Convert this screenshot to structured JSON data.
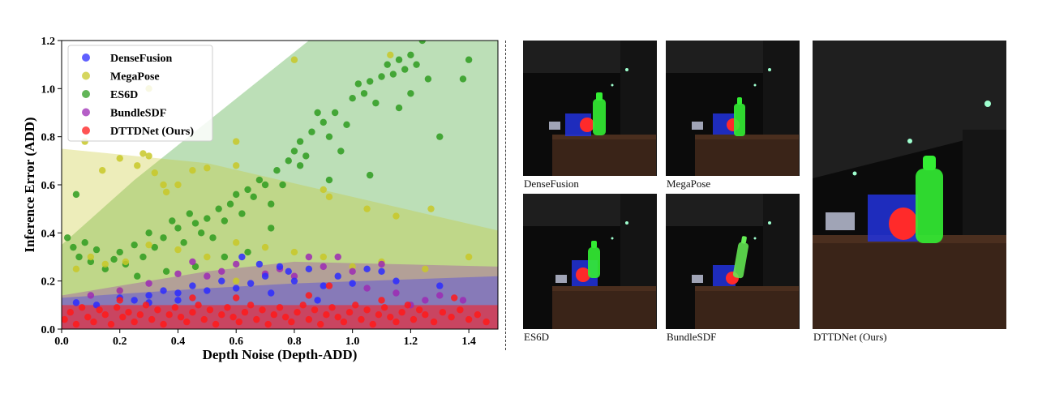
{
  "chart_data": {
    "type": "scatter",
    "xlabel": "Depth Noise (Depth-ADD)",
    "ylabel": "Inference Error (ADD)",
    "xlim": [
      0.0,
      1.5
    ],
    "ylim": [
      0.0,
      1.2
    ],
    "xticks": [
      "0.0",
      "0.2",
      "0.4",
      "0.6",
      "0.8",
      "1.0",
      "1.2",
      "1.4"
    ],
    "yticks": [
      "0.0",
      "0.2",
      "0.4",
      "0.6",
      "0.8",
      "1.0",
      "1.2"
    ],
    "legend_position": "top-left",
    "grid": false,
    "series": [
      {
        "name": "DenseFusion",
        "color": "#2b2bff",
        "band": [
          [
            0.0,
            0.13
          ],
          [
            0.5,
            0.17
          ],
          [
            0.8,
            0.19
          ],
          [
            1.5,
            0.22
          ]
        ],
        "points": [
          [
            0.05,
            0.11
          ],
          [
            0.12,
            0.1
          ],
          [
            0.2,
            0.13
          ],
          [
            0.25,
            0.12
          ],
          [
            0.3,
            0.14
          ],
          [
            0.35,
            0.16
          ],
          [
            0.4,
            0.15
          ],
          [
            0.45,
            0.18
          ],
          [
            0.5,
            0.16
          ],
          [
            0.55,
            0.2
          ],
          [
            0.6,
            0.17
          ],
          [
            0.65,
            0.19
          ],
          [
            0.7,
            0.22
          ],
          [
            0.72,
            0.15
          ],
          [
            0.78,
            0.24
          ],
          [
            0.8,
            0.2
          ],
          [
            0.85,
            0.25
          ],
          [
            0.9,
            0.18
          ],
          [
            0.95,
            0.22
          ],
          [
            1.0,
            0.19
          ],
          [
            1.05,
            0.25
          ],
          [
            1.1,
            0.24
          ],
          [
            1.15,
            0.2
          ],
          [
            1.3,
            0.18
          ],
          [
            0.62,
            0.3
          ],
          [
            0.68,
            0.27
          ],
          [
            0.75,
            0.26
          ],
          [
            0.88,
            0.12
          ],
          [
            0.4,
            0.12
          ],
          [
            0.3,
            0.11
          ]
        ]
      },
      {
        "name": "MegaPose",
        "color": "#c8c828",
        "band": [
          [
            0.0,
            0.75
          ],
          [
            0.5,
            0.69
          ],
          [
            1.0,
            0.55
          ],
          [
            1.5,
            0.41
          ]
        ],
        "points": [
          [
            0.08,
            0.78
          ],
          [
            0.14,
            0.66
          ],
          [
            0.2,
            0.71
          ],
          [
            0.26,
            0.68
          ],
          [
            0.28,
            0.73
          ],
          [
            0.3,
            0.72
          ],
          [
            0.32,
            0.65
          ],
          [
            0.35,
            0.6
          ],
          [
            0.3,
            1.0
          ],
          [
            0.8,
            1.12
          ],
          [
            1.13,
            1.14
          ],
          [
            0.6,
            0.78
          ],
          [
            0.6,
            0.68
          ],
          [
            0.5,
            0.67
          ],
          [
            0.45,
            0.66
          ],
          [
            0.36,
            0.57
          ],
          [
            0.4,
            0.6
          ],
          [
            0.9,
            0.58
          ],
          [
            0.92,
            0.55
          ],
          [
            1.05,
            0.5
          ],
          [
            1.15,
            0.47
          ],
          [
            1.27,
            0.5
          ],
          [
            0.05,
            0.25
          ],
          [
            0.1,
            0.3
          ],
          [
            0.15,
            0.27
          ],
          [
            0.22,
            0.28
          ],
          [
            0.3,
            0.35
          ],
          [
            0.4,
            0.33
          ],
          [
            0.5,
            0.3
          ],
          [
            0.6,
            0.36
          ],
          [
            0.7,
            0.34
          ],
          [
            0.8,
            0.32
          ],
          [
            0.9,
            0.3
          ],
          [
            1.0,
            0.26
          ],
          [
            1.1,
            0.28
          ],
          [
            1.25,
            0.25
          ],
          [
            1.4,
            0.3
          ],
          [
            0.2,
            0.16
          ],
          [
            0.6,
            0.2
          ]
        ]
      },
      {
        "name": "ES6D",
        "color": "#2e9c20",
        "band": [
          [
            0.0,
            0.35
          ],
          [
            0.25,
            0.62
          ],
          [
            0.85,
            1.2
          ],
          [
            1.5,
            1.2
          ]
        ],
        "points": [
          [
            0.02,
            0.38
          ],
          [
            0.04,
            0.34
          ],
          [
            0.05,
            0.56
          ],
          [
            0.06,
            0.3
          ],
          [
            0.08,
            0.36
          ],
          [
            0.1,
            0.28
          ],
          [
            0.12,
            0.33
          ],
          [
            0.15,
            0.25
          ],
          [
            0.18,
            0.29
          ],
          [
            0.2,
            0.32
          ],
          [
            0.22,
            0.27
          ],
          [
            0.25,
            0.35
          ],
          [
            0.28,
            0.3
          ],
          [
            0.3,
            0.4
          ],
          [
            0.32,
            0.34
          ],
          [
            0.35,
            0.38
          ],
          [
            0.38,
            0.45
          ],
          [
            0.4,
            0.42
          ],
          [
            0.42,
            0.36
          ],
          [
            0.44,
            0.48
          ],
          [
            0.46,
            0.44
          ],
          [
            0.48,
            0.4
          ],
          [
            0.5,
            0.46
          ],
          [
            0.52,
            0.38
          ],
          [
            0.54,
            0.5
          ],
          [
            0.56,
            0.45
          ],
          [
            0.58,
            0.52
          ],
          [
            0.6,
            0.56
          ],
          [
            0.62,
            0.48
          ],
          [
            0.64,
            0.58
          ],
          [
            0.66,
            0.55
          ],
          [
            0.68,
            0.62
          ],
          [
            0.7,
            0.6
          ],
          [
            0.72,
            0.52
          ],
          [
            0.74,
            0.66
          ],
          [
            0.76,
            0.6
          ],
          [
            0.78,
            0.7
          ],
          [
            0.8,
            0.74
          ],
          [
            0.82,
            0.78
          ],
          [
            0.84,
            0.72
          ],
          [
            0.86,
            0.82
          ],
          [
            0.88,
            0.9
          ],
          [
            0.9,
            0.86
          ],
          [
            0.92,
            0.8
          ],
          [
            0.94,
            0.9
          ],
          [
            0.96,
            0.74
          ],
          [
            0.98,
            0.85
          ],
          [
            1.0,
            0.96
          ],
          [
            1.02,
            1.02
          ],
          [
            1.04,
            0.98
          ],
          [
            1.06,
            1.03
          ],
          [
            1.08,
            0.94
          ],
          [
            1.1,
            1.05
          ],
          [
            1.12,
            1.1
          ],
          [
            1.14,
            1.06
          ],
          [
            1.16,
            1.12
          ],
          [
            1.18,
            1.08
          ],
          [
            1.2,
            1.14
          ],
          [
            1.22,
            1.1
          ],
          [
            1.24,
            1.2
          ],
          [
            1.26,
            1.04
          ],
          [
            1.3,
            0.8
          ],
          [
            1.38,
            1.04
          ],
          [
            1.4,
            1.12
          ],
          [
            1.2,
            0.98
          ],
          [
            1.16,
            0.92
          ],
          [
            1.06,
            0.64
          ],
          [
            0.92,
            0.62
          ],
          [
            0.82,
            0.68
          ],
          [
            0.72,
            0.42
          ],
          [
            0.64,
            0.32
          ],
          [
            0.56,
            0.3
          ],
          [
            0.46,
            0.26
          ],
          [
            0.36,
            0.24
          ],
          [
            0.26,
            0.22
          ]
        ]
      },
      {
        "name": "BundleSDF",
        "color": "#9c2ab4",
        "band": [
          [
            0.0,
            0.14
          ],
          [
            0.5,
            0.24
          ],
          [
            0.8,
            0.28
          ],
          [
            1.5,
            0.26
          ]
        ],
        "points": [
          [
            0.1,
            0.14
          ],
          [
            0.2,
            0.16
          ],
          [
            0.3,
            0.19
          ],
          [
            0.4,
            0.23
          ],
          [
            0.45,
            0.28
          ],
          [
            0.5,
            0.22
          ],
          [
            0.55,
            0.24
          ],
          [
            0.6,
            0.27
          ],
          [
            0.7,
            0.23
          ],
          [
            0.75,
            0.25
          ],
          [
            0.8,
            0.22
          ],
          [
            0.9,
            0.26
          ],
          [
            1.0,
            0.24
          ],
          [
            1.05,
            0.17
          ],
          [
            1.1,
            0.27
          ],
          [
            1.15,
            0.15
          ],
          [
            1.2,
            0.1
          ],
          [
            1.25,
            0.12
          ],
          [
            1.3,
            0.14
          ],
          [
            1.38,
            0.12
          ],
          [
            0.85,
            0.3
          ],
          [
            0.95,
            0.3
          ]
        ]
      },
      {
        "name": "DTTDNet (Ours)",
        "color": "#ff1a1a",
        "band": [
          [
            0.0,
            0.1
          ],
          [
            0.5,
            0.1
          ],
          [
            1.0,
            0.1
          ],
          [
            1.5,
            0.1
          ]
        ],
        "points": [
          [
            0.01,
            0.04
          ],
          [
            0.03,
            0.07
          ],
          [
            0.05,
            0.02
          ],
          [
            0.07,
            0.09
          ],
          [
            0.09,
            0.05
          ],
          [
            0.11,
            0.03
          ],
          [
            0.13,
            0.08
          ],
          [
            0.15,
            0.06
          ],
          [
            0.17,
            0.02
          ],
          [
            0.19,
            0.09
          ],
          [
            0.21,
            0.05
          ],
          [
            0.23,
            0.07
          ],
          [
            0.25,
            0.03
          ],
          [
            0.27,
            0.06
          ],
          [
            0.29,
            0.1
          ],
          [
            0.31,
            0.04
          ],
          [
            0.33,
            0.08
          ],
          [
            0.35,
            0.02
          ],
          [
            0.37,
            0.06
          ],
          [
            0.39,
            0.09
          ],
          [
            0.41,
            0.05
          ],
          [
            0.43,
            0.03
          ],
          [
            0.45,
            0.07
          ],
          [
            0.47,
            0.1
          ],
          [
            0.49,
            0.04
          ],
          [
            0.51,
            0.08
          ],
          [
            0.53,
            0.02
          ],
          [
            0.55,
            0.06
          ],
          [
            0.57,
            0.09
          ],
          [
            0.59,
            0.05
          ],
          [
            0.61,
            0.03
          ],
          [
            0.63,
            0.07
          ],
          [
            0.65,
            0.1
          ],
          [
            0.67,
            0.04
          ],
          [
            0.69,
            0.08
          ],
          [
            0.71,
            0.02
          ],
          [
            0.73,
            0.06
          ],
          [
            0.75,
            0.09
          ],
          [
            0.77,
            0.05
          ],
          [
            0.79,
            0.03
          ],
          [
            0.81,
            0.07
          ],
          [
            0.83,
            0.1
          ],
          [
            0.85,
            0.04
          ],
          [
            0.87,
            0.08
          ],
          [
            0.89,
            0.02
          ],
          [
            0.91,
            0.06
          ],
          [
            0.93,
            0.09
          ],
          [
            0.95,
            0.05
          ],
          [
            0.97,
            0.03
          ],
          [
            0.99,
            0.07
          ],
          [
            1.01,
            0.1
          ],
          [
            1.03,
            0.04
          ],
          [
            1.05,
            0.08
          ],
          [
            1.07,
            0.02
          ],
          [
            1.09,
            0.06
          ],
          [
            1.11,
            0.09
          ],
          [
            1.13,
            0.05
          ],
          [
            1.15,
            0.03
          ],
          [
            1.17,
            0.07
          ],
          [
            1.19,
            0.1
          ],
          [
            1.21,
            0.04
          ],
          [
            1.23,
            0.08
          ],
          [
            1.25,
            0.06
          ],
          [
            1.28,
            0.03
          ],
          [
            1.31,
            0.07
          ],
          [
            1.34,
            0.05
          ],
          [
            1.37,
            0.08
          ],
          [
            1.4,
            0.04
          ],
          [
            1.43,
            0.06
          ],
          [
            1.46,
            0.03
          ],
          [
            0.85,
            0.14
          ],
          [
            0.92,
            0.18
          ],
          [
            1.35,
            0.13
          ],
          [
            0.6,
            0.13
          ],
          [
            0.2,
            0.12
          ],
          [
            0.45,
            0.13
          ],
          [
            1.1,
            0.12
          ]
        ]
      }
    ]
  },
  "panels": {
    "densefusion": {
      "caption": "DenseFusion"
    },
    "megapose": {
      "caption": "MegaPose"
    },
    "es6d": {
      "caption": "ES6D"
    },
    "bundlesdf": {
      "caption": "BundleSDF"
    },
    "dttdnet": {
      "caption": "DTTDNet (Ours)"
    }
  }
}
